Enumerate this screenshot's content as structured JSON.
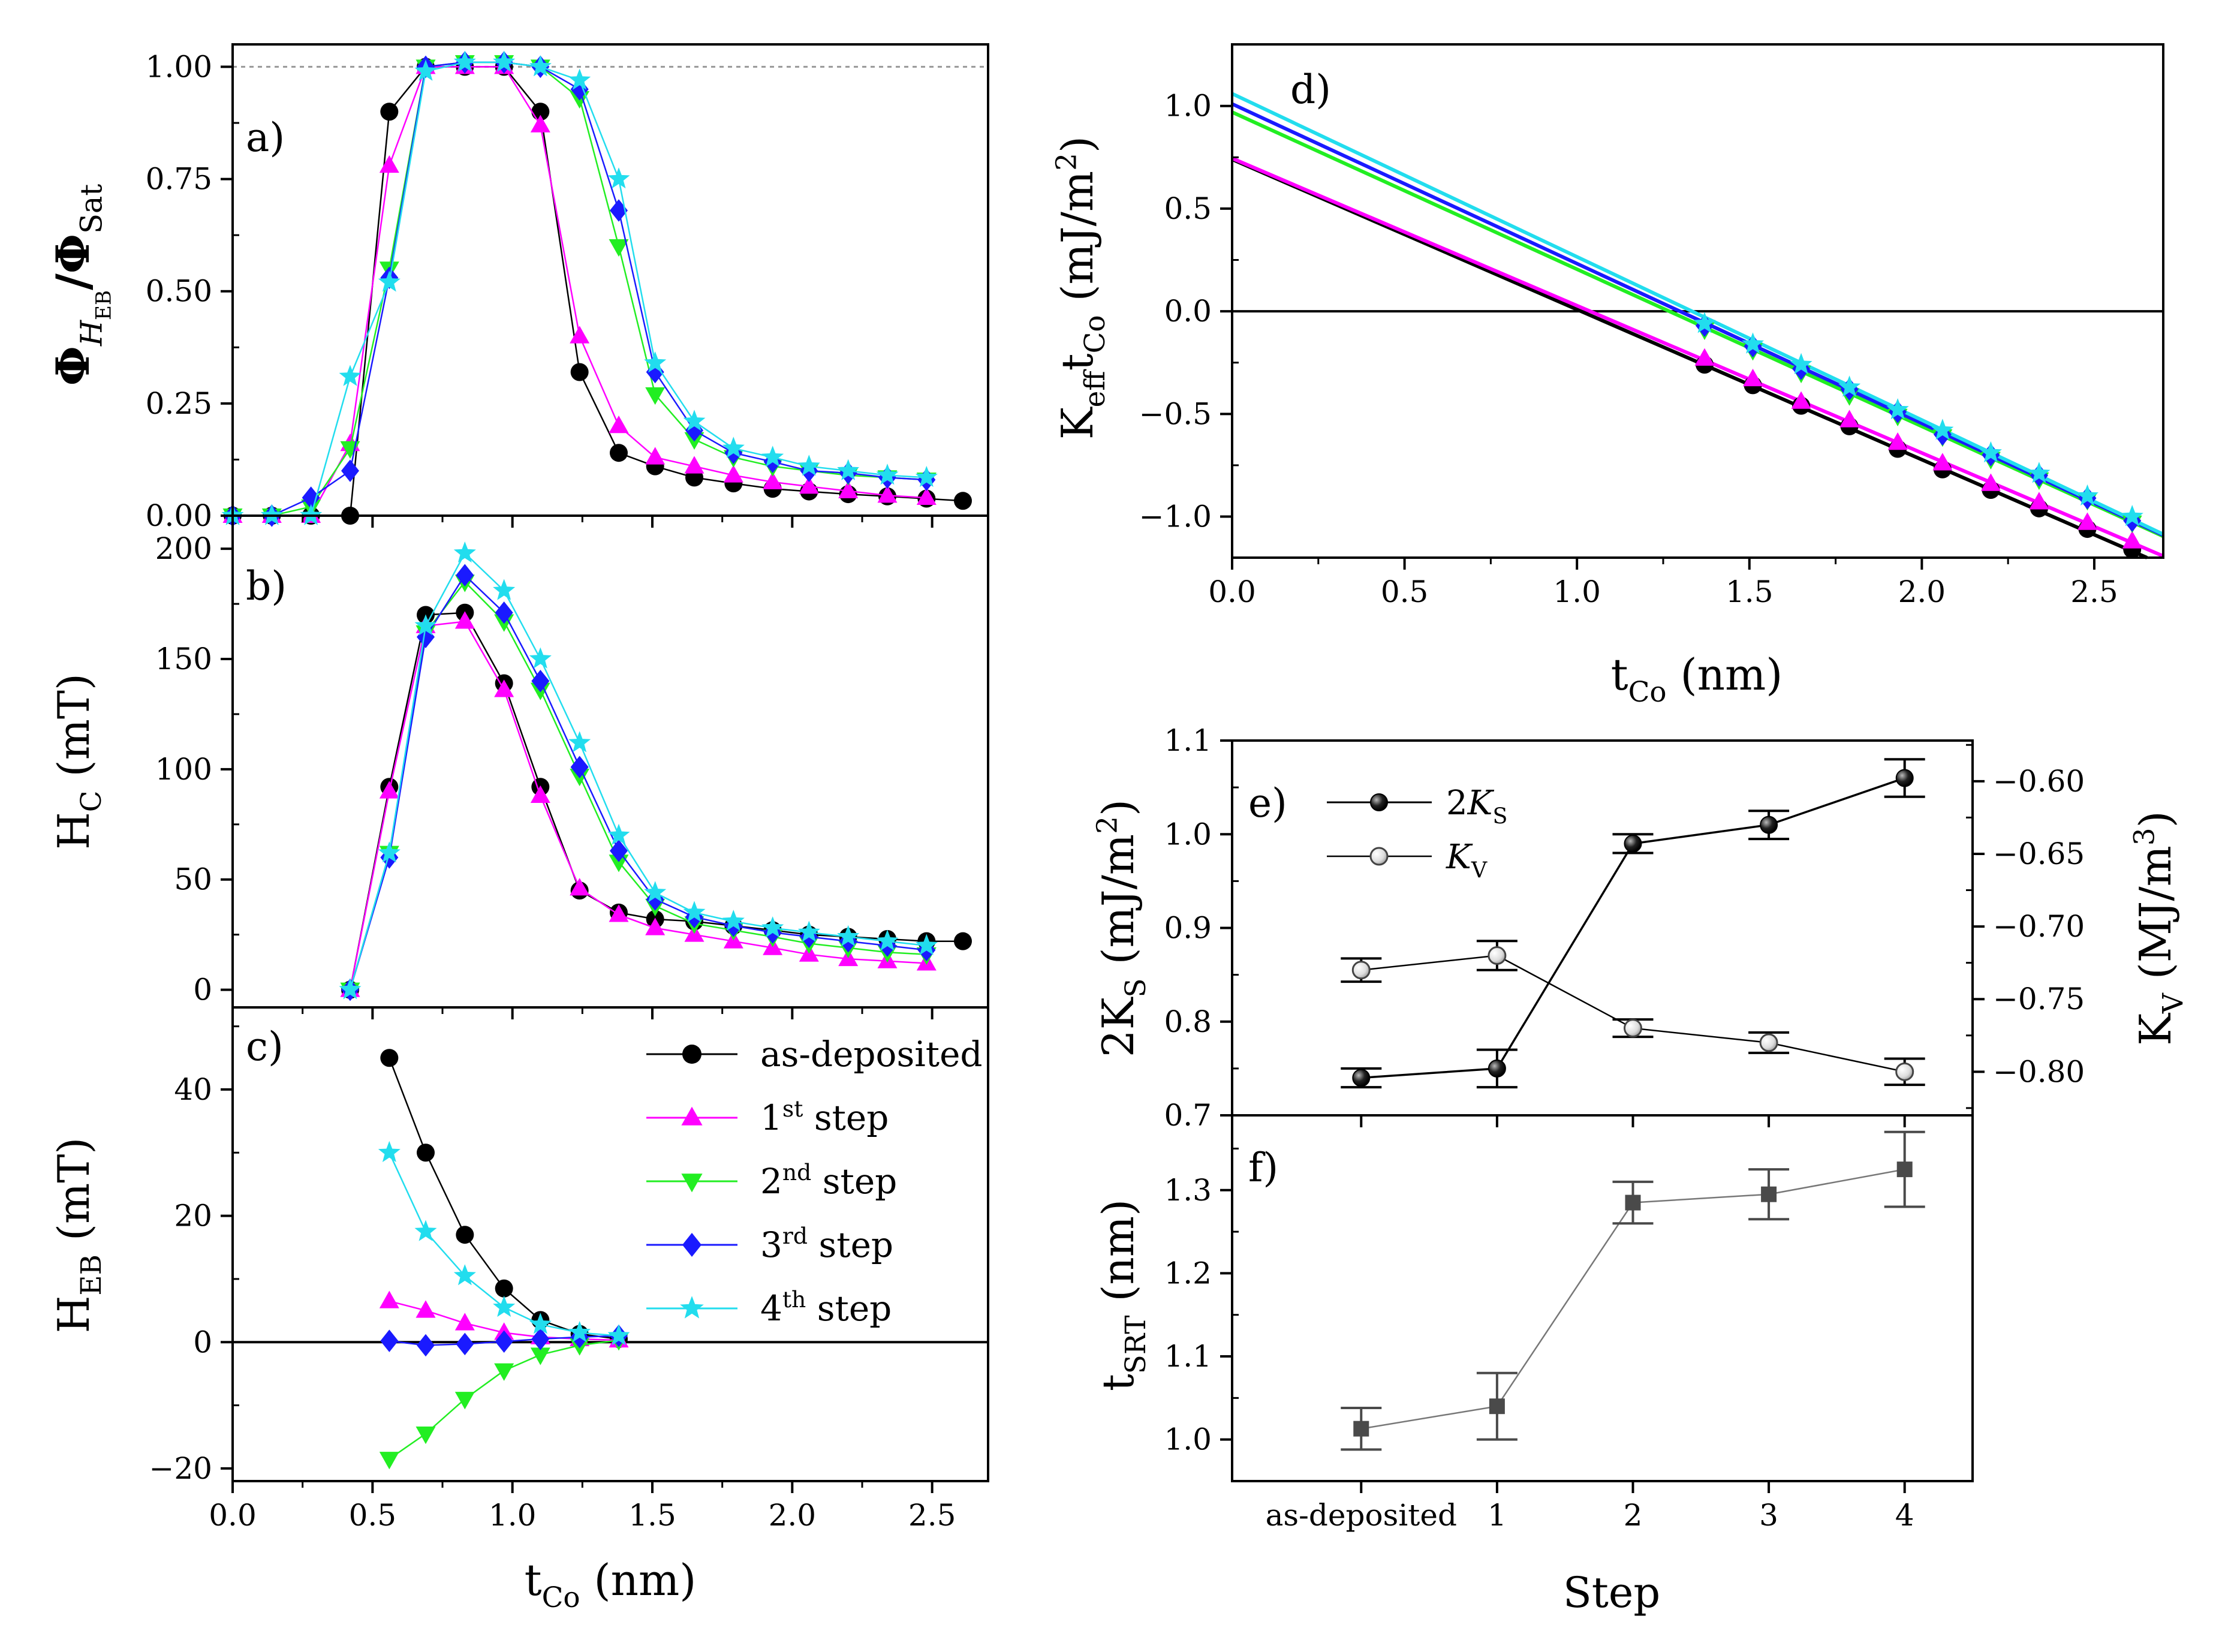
{
  "colors": {
    "as_deposited": "#000000",
    "step1": "#ff00ff",
    "step2": "#22ee22",
    "step3": "#1a1aff",
    "step4": "#22ddee",
    "grey": "#4a4a4a"
  },
  "legend": {
    "as_deposited": "as-deposited",
    "step1": {
      "num": "1",
      "sup": "st",
      "word": "step"
    },
    "step2": {
      "num": "2",
      "sup": "nd",
      "word": "step"
    },
    "step3": {
      "num": "3",
      "sup": "rd",
      "word": "step"
    },
    "step4": {
      "num": "4",
      "sup": "th",
      "word": "step"
    }
  },
  "legend_e": {
    "ks": {
      "prefix": "2",
      "main": "K",
      "sub": "S"
    },
    "kv": {
      "main": "K",
      "sub": "V"
    }
  },
  "chart_data": [
    {
      "id": "a",
      "type": "line",
      "panel_label": "a)",
      "ylabel": {
        "main": "Φ",
        "sub_italic": "H",
        "subsub": "EB",
        "div": "/Φ",
        "sub2": "Sat"
      },
      "xlim": [
        0,
        2.7
      ],
      "ylim": [
        0,
        1.05
      ],
      "yticks": [
        "0.00",
        "0.25",
        "0.50",
        "0.75",
        "1.00"
      ],
      "reference_line": 1.0,
      "series": [
        {
          "name": "as-deposited",
          "color_key": "as_deposited",
          "marker": "circle",
          "x": [
            0.0,
            0.14,
            0.28,
            0.42,
            0.56,
            0.69,
            0.83,
            0.97,
            1.1,
            1.24,
            1.38,
            1.51,
            1.65,
            1.79,
            1.93,
            2.06,
            2.2,
            2.34,
            2.48,
            2.61
          ],
          "y": [
            0.0,
            0.0,
            0.0,
            0.0,
            0.9,
            1.0,
            1.0,
            1.0,
            0.9,
            0.32,
            0.14,
            0.11,
            0.085,
            0.072,
            0.06,
            0.054,
            0.048,
            0.043,
            0.038,
            0.033
          ]
        },
        {
          "name": "1st step",
          "color_key": "step1",
          "marker": "triangle-up",
          "x": [
            0.0,
            0.14,
            0.28,
            0.42,
            0.56,
            0.69,
            0.83,
            0.97,
            1.1,
            1.24,
            1.38,
            1.51,
            1.65,
            1.79,
            1.93,
            2.06,
            2.2,
            2.34,
            2.48
          ],
          "y": [
            0.0,
            0.0,
            0.0,
            0.16,
            0.78,
            1.0,
            1.0,
            1.0,
            0.87,
            0.4,
            0.2,
            0.13,
            0.11,
            0.09,
            0.075,
            0.065,
            0.055,
            0.045,
            0.04
          ]
        },
        {
          "name": "2nd step",
          "color_key": "step2",
          "marker": "triangle-down",
          "x": [
            0.0,
            0.14,
            0.28,
            0.42,
            0.56,
            0.69,
            0.83,
            0.97,
            1.1,
            1.24,
            1.38,
            1.51,
            1.65,
            1.79,
            1.93,
            2.06,
            2.2,
            2.34,
            2.48
          ],
          "y": [
            0.0,
            0.0,
            0.02,
            0.15,
            0.55,
            1.0,
            1.01,
            1.01,
            1.0,
            0.93,
            0.6,
            0.27,
            0.17,
            0.13,
            0.11,
            0.1,
            0.09,
            0.085,
            0.08
          ]
        },
        {
          "name": "3rd step",
          "color_key": "step3",
          "marker": "diamond",
          "x": [
            0.0,
            0.14,
            0.28,
            0.42,
            0.56,
            0.69,
            0.83,
            0.97,
            1.1,
            1.24,
            1.38,
            1.51,
            1.65,
            1.79,
            1.93,
            2.06,
            2.2,
            2.34,
            2.48
          ],
          "y": [
            0.0,
            0.0,
            0.04,
            0.1,
            0.53,
            1.0,
            1.01,
            1.01,
            1.0,
            0.95,
            0.68,
            0.32,
            0.19,
            0.14,
            0.12,
            0.1,
            0.095,
            0.085,
            0.08
          ]
        },
        {
          "name": "4th step",
          "color_key": "step4",
          "marker": "star",
          "x": [
            0.0,
            0.14,
            0.28,
            0.42,
            0.56,
            0.69,
            0.83,
            0.97,
            1.1,
            1.24,
            1.38,
            1.51,
            1.65,
            1.79,
            1.93,
            2.06,
            2.2,
            2.34,
            2.48
          ],
          "y": [
            0.0,
            0.0,
            0.0,
            0.31,
            0.52,
            0.99,
            1.01,
            1.01,
            1.0,
            0.97,
            0.75,
            0.34,
            0.21,
            0.15,
            0.13,
            0.11,
            0.1,
            0.09,
            0.085
          ]
        }
      ]
    },
    {
      "id": "b",
      "type": "line",
      "panel_label": "b)",
      "ylabel": {
        "main": "H",
        "sub": "C",
        "unit": " (mT)"
      },
      "xlim": [
        0,
        2.7
      ],
      "ylim": [
        -8,
        215
      ],
      "yticks": [
        "0",
        "50",
        "100",
        "150",
        "200"
      ],
      "series": [
        {
          "name": "as-deposited",
          "color_key": "as_deposited",
          "marker": "circle",
          "x": [
            0.42,
            0.56,
            0.69,
            0.83,
            0.97,
            1.1,
            1.24,
            1.38,
            1.51,
            1.65,
            1.79,
            1.93,
            2.06,
            2.2,
            2.34,
            2.48,
            2.61
          ],
          "y": [
            0,
            92,
            170,
            171,
            139,
            92,
            45,
            35,
            32,
            31,
            29,
            27,
            25,
            24,
            23,
            22,
            22
          ]
        },
        {
          "name": "1st step",
          "color_key": "step1",
          "marker": "triangle-up",
          "x": [
            0.42,
            0.56,
            0.69,
            0.83,
            0.97,
            1.1,
            1.24,
            1.38,
            1.51,
            1.65,
            1.79,
            1.93,
            2.06,
            2.2,
            2.34,
            2.48
          ],
          "y": [
            0,
            90,
            165,
            167,
            136,
            88,
            46,
            34,
            28,
            25,
            22,
            19,
            16,
            14,
            13,
            12
          ]
        },
        {
          "name": "2nd step",
          "color_key": "step2",
          "marker": "triangle-down",
          "x": [
            0.42,
            0.56,
            0.69,
            0.83,
            0.97,
            1.1,
            1.24,
            1.38,
            1.51,
            1.65,
            1.79,
            1.93,
            2.06,
            2.2,
            2.34,
            2.48
          ],
          "y": [
            0,
            62,
            162,
            185,
            167,
            136,
            97,
            58,
            38,
            30,
            27,
            24,
            21,
            19,
            17,
            16
          ]
        },
        {
          "name": "3rd step",
          "color_key": "step3",
          "marker": "diamond",
          "x": [
            0.42,
            0.56,
            0.69,
            0.83,
            0.97,
            1.1,
            1.24,
            1.38,
            1.51,
            1.65,
            1.79,
            1.93,
            2.06,
            2.2,
            2.34,
            2.48
          ],
          "y": [
            0,
            60,
            160,
            188,
            171,
            140,
            101,
            63,
            41,
            33,
            29,
            26,
            24,
            22,
            20,
            18
          ]
        },
        {
          "name": "4th step",
          "color_key": "step4",
          "marker": "star",
          "x": [
            0.42,
            0.56,
            0.69,
            0.83,
            0.97,
            1.1,
            1.24,
            1.38,
            1.51,
            1.65,
            1.79,
            1.93,
            2.06,
            2.2,
            2.34,
            2.48
          ],
          "y": [
            0,
            62,
            165,
            198,
            181,
            150,
            112,
            70,
            44,
            35,
            31,
            28,
            26,
            24,
            22,
            20
          ]
        }
      ]
    },
    {
      "id": "c",
      "type": "line",
      "panel_label": "c)",
      "ylabel": {
        "main": "H",
        "sub": "EB",
        "unit": " (mT)"
      },
      "xlabel": {
        "main": "t",
        "sub": "Co",
        "unit": " (nm)"
      },
      "xlim": [
        0,
        2.7
      ],
      "xticks": [
        "0.0",
        "0.5",
        "1.0",
        "1.5",
        "2.0",
        "2.5"
      ],
      "ylim": [
        -22,
        53
      ],
      "yticks": [
        "−20",
        "0",
        "20",
        "40"
      ],
      "reference_line": 0,
      "series": [
        {
          "name": "as-deposited",
          "color_key": "as_deposited",
          "marker": "circle",
          "x": [
            0.56,
            0.69,
            0.83,
            0.97,
            1.1,
            1.24,
            1.38
          ],
          "y": [
            45,
            30,
            17,
            8.5,
            3.5,
            1.3,
            0.5
          ]
        },
        {
          "name": "1st step",
          "color_key": "step1",
          "marker": "triangle-up",
          "x": [
            0.56,
            0.69,
            0.83,
            0.97,
            1.1,
            1.24,
            1.38
          ],
          "y": [
            6.5,
            5.0,
            3.0,
            1.5,
            0.8,
            0.5,
            0.3
          ]
        },
        {
          "name": "2nd step",
          "color_key": "step2",
          "marker": "triangle-down",
          "x": [
            0.56,
            0.69,
            0.83,
            0.97,
            1.1,
            1.24,
            1.38
          ],
          "y": [
            -18.5,
            -14.5,
            -9.0,
            -4.5,
            -2.0,
            -0.5,
            0.3
          ]
        },
        {
          "name": "3rd step",
          "color_key": "step3",
          "marker": "diamond",
          "x": [
            0.56,
            0.69,
            0.83,
            0.97,
            1.1,
            1.24,
            1.38
          ],
          "y": [
            0.2,
            -0.5,
            -0.3,
            0.1,
            0.5,
            0.8,
            1.0
          ]
        },
        {
          "name": "4th step",
          "color_key": "step4",
          "marker": "star",
          "x": [
            0.56,
            0.69,
            0.83,
            0.97,
            1.1,
            1.24,
            1.38
          ],
          "y": [
            30,
            17.5,
            10.5,
            5.5,
            2.8,
            1.5,
            1.0
          ]
        }
      ]
    },
    {
      "id": "d",
      "type": "line",
      "panel_label": "d)",
      "ylabel": {
        "main": "K",
        "sub": "eff",
        "main2": "t",
        "sub2": "Co",
        "unit": " (mJ/m",
        "sup": "2",
        "close": ")"
      },
      "xlabel": {
        "main": "t",
        "sub": "Co",
        "unit": " (nm)"
      },
      "xlim": [
        0,
        2.7
      ],
      "xticks": [
        "0.0",
        "0.5",
        "1.0",
        "1.5",
        "2.0",
        "2.5"
      ],
      "ylim": [
        -1.2,
        1.3
      ],
      "yticks": [
        "−1.0",
        "−0.5",
        "0.0",
        "0.5",
        "1.0"
      ],
      "reference_line": 0,
      "fit_lines": [
        {
          "color_key": "as_deposited",
          "intercept": 0.74,
          "slope": -0.7313
        },
        {
          "color_key": "step1",
          "intercept": 0.745,
          "slope": -0.7175
        },
        {
          "color_key": "step2",
          "intercept": 0.97,
          "slope": -0.7652
        },
        {
          "color_key": "step3",
          "intercept": 1.01,
          "slope": -0.7778
        },
        {
          "color_key": "step4",
          "intercept": 1.06,
          "slope": -0.7948
        }
      ],
      "series": [
        {
          "name": "as-deposited",
          "color_key": "as_deposited",
          "marker": "circle",
          "x": [
            1.37,
            1.51,
            1.65,
            1.79,
            1.93,
            2.06,
            2.2,
            2.34,
            2.48,
            2.61
          ],
          "y": [
            -0.26,
            -0.36,
            -0.46,
            -0.56,
            -0.67,
            -0.77,
            -0.87,
            -0.96,
            -1.06,
            -1.16
          ]
        },
        {
          "name": "1st step",
          "color_key": "step1",
          "marker": "triangle-up",
          "x": [
            1.37,
            1.51,
            1.65,
            1.79,
            1.93,
            2.06,
            2.2,
            2.34,
            2.48,
            2.61
          ],
          "y": [
            -0.23,
            -0.33,
            -0.44,
            -0.53,
            -0.64,
            -0.74,
            -0.84,
            -0.93,
            -1.03,
            -1.12
          ]
        },
        {
          "name": "2nd step",
          "color_key": "step2",
          "marker": "triangle-down",
          "x": [
            1.37,
            1.51,
            1.65,
            1.79,
            1.93,
            2.06,
            2.2,
            2.34,
            2.48,
            2.61
          ],
          "y": [
            -0.09,
            -0.19,
            -0.3,
            -0.41,
            -0.51,
            -0.61,
            -0.72,
            -0.82,
            -0.92,
            -1.03
          ]
        },
        {
          "name": "3rd step",
          "color_key": "step3",
          "marker": "diamond",
          "x": [
            1.37,
            1.51,
            1.65,
            1.79,
            1.93,
            2.06,
            2.2,
            2.34,
            2.48,
            2.61
          ],
          "y": [
            -0.07,
            -0.17,
            -0.28,
            -0.38,
            -0.49,
            -0.6,
            -0.7,
            -0.8,
            -0.91,
            -1.02
          ]
        },
        {
          "name": "4th step",
          "color_key": "step4",
          "marker": "star",
          "x": [
            1.37,
            1.51,
            1.65,
            1.79,
            1.93,
            2.06,
            2.2,
            2.34,
            2.48,
            2.61
          ],
          "y": [
            -0.06,
            -0.16,
            -0.26,
            -0.37,
            -0.48,
            -0.58,
            -0.69,
            -0.79,
            -0.9,
            -1.0
          ]
        }
      ]
    },
    {
      "id": "e",
      "type": "line",
      "panel_label": "e)",
      "ylabel_left": {
        "prefix": "2",
        "main": "K",
        "sub": "S",
        "unit": " (mJ/m",
        "sup": "2",
        "close": ")"
      },
      "ylabel_right": {
        "main": "K",
        "sub": "V",
        "unit": " (MJ/m",
        "sup": "3",
        "close": ")"
      },
      "x": [
        0,
        1,
        2,
        3,
        4
      ],
      "ylim_left": [
        0.7,
        1.1
      ],
      "yticks_left": [
        "0.7",
        "0.8",
        "0.9",
        "1.0",
        "1.1"
      ],
      "ylim_right": [
        -0.83,
        -0.572
      ],
      "yticks_right": [
        "−0.80",
        "−0.75",
        "−0.70",
        "−0.65",
        "−0.60"
      ],
      "series": [
        {
          "name": "2K_S",
          "axis": "left",
          "marker": "filled-sphere",
          "values": [
            0.74,
            0.75,
            0.99,
            1.01,
            1.06
          ],
          "errors": [
            0.01,
            0.02,
            0.01,
            0.015,
            0.02
          ]
        },
        {
          "name": "K_V",
          "axis": "right",
          "marker": "open-sphere",
          "values": [
            -0.73,
            -0.72,
            -0.77,
            -0.78,
            -0.8
          ],
          "errors": [
            0.008,
            0.01,
            0.006,
            0.007,
            0.009
          ]
        }
      ]
    },
    {
      "id": "f",
      "type": "line",
      "panel_label": "f)",
      "ylabel": {
        "main": "t",
        "sub": "SRT",
        "unit": " (nm)"
      },
      "xlabel": "Step",
      "x": [
        0,
        1,
        2,
        3,
        4
      ],
      "xticks": [
        "as-deposited",
        "1",
        "2",
        "3",
        "4"
      ],
      "ylim": [
        0.95,
        1.39
      ],
      "yticks": [
        "1.0",
        "1.1",
        "1.2",
        "1.3"
      ],
      "series": [
        {
          "name": "t_SRT",
          "color_key": "grey",
          "marker": "square",
          "values": [
            1.013,
            1.04,
            1.285,
            1.295,
            1.325
          ],
          "errors": [
            0.025,
            0.04,
            0.025,
            0.03,
            0.045
          ]
        }
      ]
    }
  ]
}
